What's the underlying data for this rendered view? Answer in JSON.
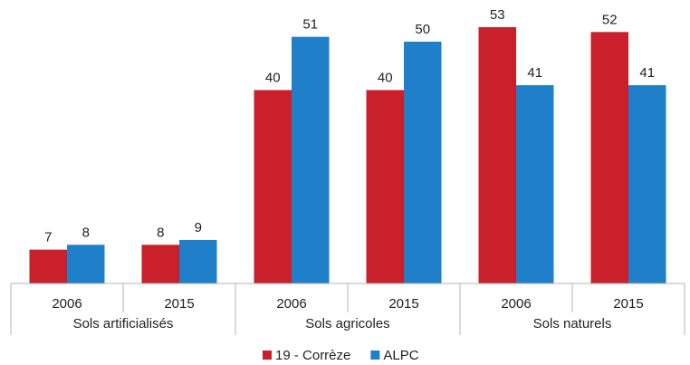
{
  "chart_data": {
    "type": "bar",
    "categories": [
      "2006",
      "2015",
      "2006",
      "2015",
      "2006",
      "2015"
    ],
    "groups": [
      "Sols artificialisés",
      "Sols agricoles",
      "Sols naturels"
    ],
    "series": [
      {
        "name": "19 - Corrèze",
        "color": "#c9202b",
        "values": [
          7,
          8,
          40,
          40,
          53,
          52
        ]
      },
      {
        "name": "ALPC",
        "color": "#1f7fc8",
        "values": [
          8,
          9,
          51,
          50,
          41,
          41
        ]
      }
    ],
    "legend": "bottom"
  }
}
